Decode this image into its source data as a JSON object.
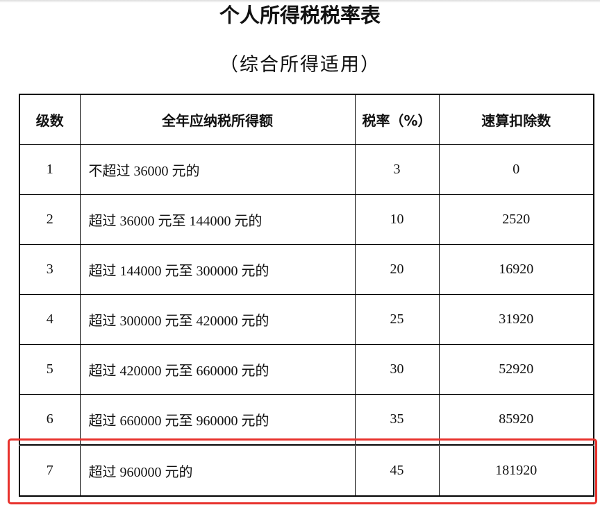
{
  "title": "个人所得税税率表",
  "subtitle": "（综合所得适用）",
  "table": {
    "headers": [
      "级数",
      "全年应纳税所得额",
      "税率（%）",
      "速算扣除数"
    ],
    "rows": [
      {
        "level": "1",
        "range": "不超过 36000 元的",
        "rate": "3",
        "deduction": "0"
      },
      {
        "level": "2",
        "range": "超过 36000 元至 144000 元的",
        "rate": "10",
        "deduction": "2520"
      },
      {
        "level": "3",
        "range": "超过 144000 元至 300000 元的",
        "rate": "20",
        "deduction": "16920"
      },
      {
        "level": "4",
        "range": "超过 300000 元至 420000 元的",
        "rate": "25",
        "deduction": "31920"
      },
      {
        "level": "5",
        "range": "超过 420000 元至 660000 元的",
        "rate": "30",
        "deduction": "52920"
      },
      {
        "level": "6",
        "range": "超过 660000 元至 960000 元的",
        "rate": "35",
        "deduction": "85920"
      },
      {
        "level": "7",
        "range": "超过 960000 元的",
        "rate": "45",
        "deduction": "181920"
      }
    ]
  },
  "highlight": {
    "color": "#e8322c",
    "row": 7
  }
}
